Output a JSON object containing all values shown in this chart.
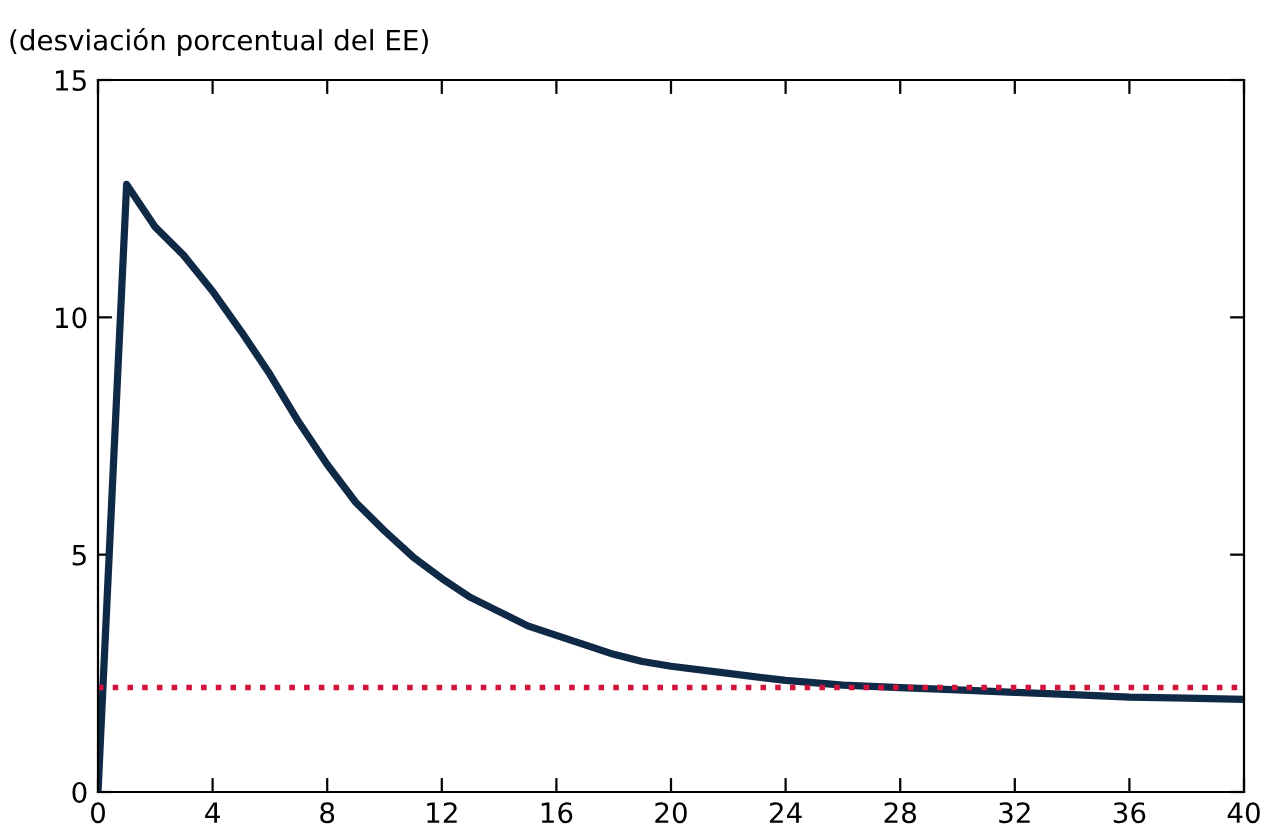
{
  "chart_data": {
    "type": "line",
    "ylabel": "(desviación porcentual del EE)",
    "x": [
      0,
      1,
      2,
      3,
      4,
      5,
      6,
      7,
      8,
      9,
      10,
      11,
      12,
      13,
      14,
      15,
      16,
      17,
      18,
      19,
      20,
      22,
      24,
      26,
      28,
      30,
      32,
      34,
      36,
      38,
      40
    ],
    "series": [
      {
        "color": "#0f2a47",
        "values": [
          0,
          12.8,
          11.9,
          11.3,
          10.55,
          9.7,
          8.8,
          7.8,
          6.9,
          6.1,
          5.5,
          4.95,
          4.5,
          4.1,
          3.8,
          3.5,
          3.3,
          3.1,
          2.9,
          2.75,
          2.65,
          2.5,
          2.35,
          2.25,
          2.2,
          2.15,
          2.1,
          2.05,
          2.0,
          1.98,
          1.95
        ]
      }
    ],
    "ref_lines": [
      {
        "axis": "y",
        "value": 2.2,
        "color": "#d2143c",
        "line_style": "dotted"
      }
    ],
    "xlim": [
      0,
      40
    ],
    "xticks": [
      0,
      4,
      8,
      12,
      16,
      20,
      24,
      28,
      32,
      36,
      40
    ],
    "ylim": [
      0,
      15
    ],
    "yticks": [
      0,
      5,
      10,
      15
    ],
    "grid": false,
    "legend": false
  }
}
